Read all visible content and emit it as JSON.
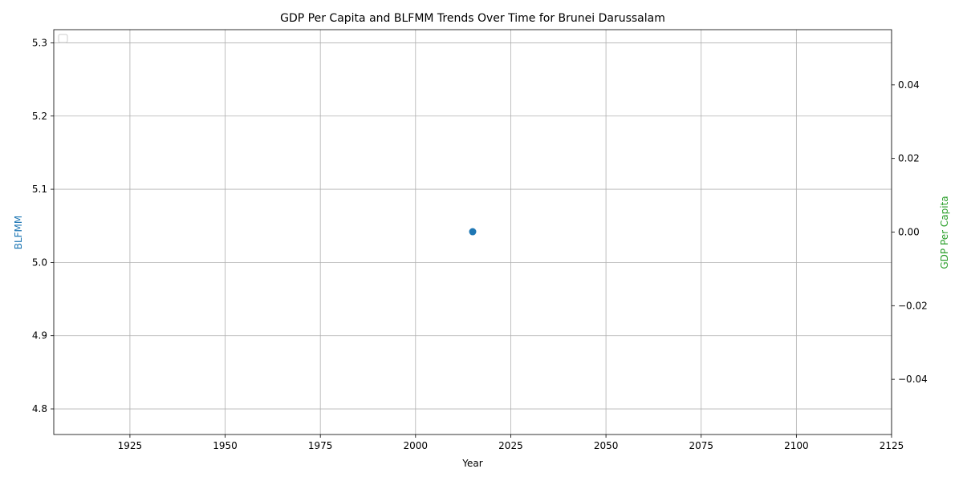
{
  "chart_data": {
    "type": "scatter",
    "title": "GDP Per Capita and BLFMM Trends Over Time for Brunei Darussalam",
    "xlabel": "Year",
    "ylabel_left": "BLFMM",
    "ylabel_right": "GDP Per Capita",
    "xlim": [
      1905,
      2125
    ],
    "ylim_left": [
      4.765,
      5.318
    ],
    "ylim_right": [
      -0.055,
      0.055
    ],
    "x_ticks": [
      1925,
      1950,
      1975,
      2000,
      2025,
      2050,
      2075,
      2100,
      2125
    ],
    "y_left_ticks": [
      4.8,
      4.9,
      5.0,
      5.1,
      5.2,
      5.3
    ],
    "y_right_ticks": [
      -0.04,
      -0.02,
      0.0,
      0.02,
      0.04
    ],
    "grid": true,
    "legend": "top-left (empty)",
    "series": [
      {
        "name": "",
        "axis": "left",
        "points": [
          {
            "x": 2015,
            "y": 5.042
          }
        ]
      }
    ],
    "colors": {
      "left_axis": "#1f77b4",
      "right_axis": "#2ca02c",
      "points": "#1f77b4"
    }
  }
}
